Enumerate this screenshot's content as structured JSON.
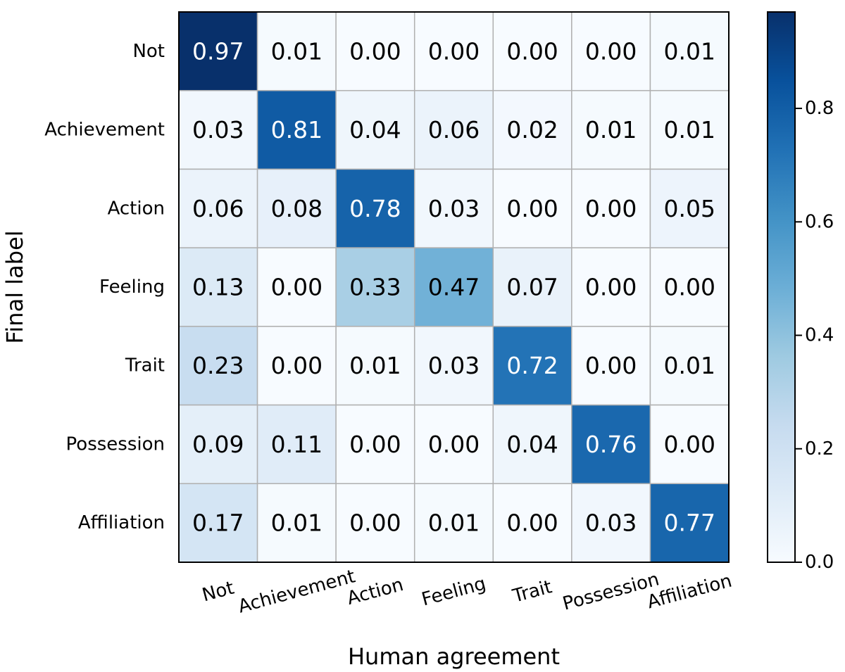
{
  "chart_data": {
    "type": "heatmap",
    "xlabel": "Human agreement",
    "ylabel": "Final label",
    "x_categories": [
      "Not",
      "Achievement",
      "Action",
      "Feeling",
      "Trait",
      "Possession",
      "Affiliation"
    ],
    "y_categories": [
      "Not",
      "Achievement",
      "Action",
      "Feeling",
      "Trait",
      "Possession",
      "Affiliation"
    ],
    "values": [
      [
        0.97,
        0.01,
        0.0,
        0.0,
        0.0,
        0.0,
        0.01
      ],
      [
        0.03,
        0.81,
        0.04,
        0.06,
        0.02,
        0.01,
        0.01
      ],
      [
        0.06,
        0.08,
        0.78,
        0.03,
        0.0,
        0.0,
        0.05
      ],
      [
        0.13,
        0.0,
        0.33,
        0.47,
        0.07,
        0.0,
        0.0
      ],
      [
        0.23,
        0.0,
        0.01,
        0.03,
        0.72,
        0.0,
        0.01
      ],
      [
        0.09,
        0.11,
        0.0,
        0.0,
        0.04,
        0.76,
        0.0
      ],
      [
        0.17,
        0.01,
        0.0,
        0.01,
        0.0,
        0.03,
        0.77
      ]
    ],
    "value_format": "0.00",
    "colormap": "Blues",
    "colorbar": {
      "range": [
        0.0,
        0.97
      ],
      "ticks": [
        0.0,
        0.2,
        0.4,
        0.6,
        0.8
      ],
      "tick_labels": [
        "0.0",
        "0.2",
        "0.4",
        "0.6",
        "0.8"
      ]
    },
    "grid": true,
    "text_color_dark": "#000000",
    "text_color_light": "#ffffff",
    "grid_color": "#b0b0b0"
  }
}
